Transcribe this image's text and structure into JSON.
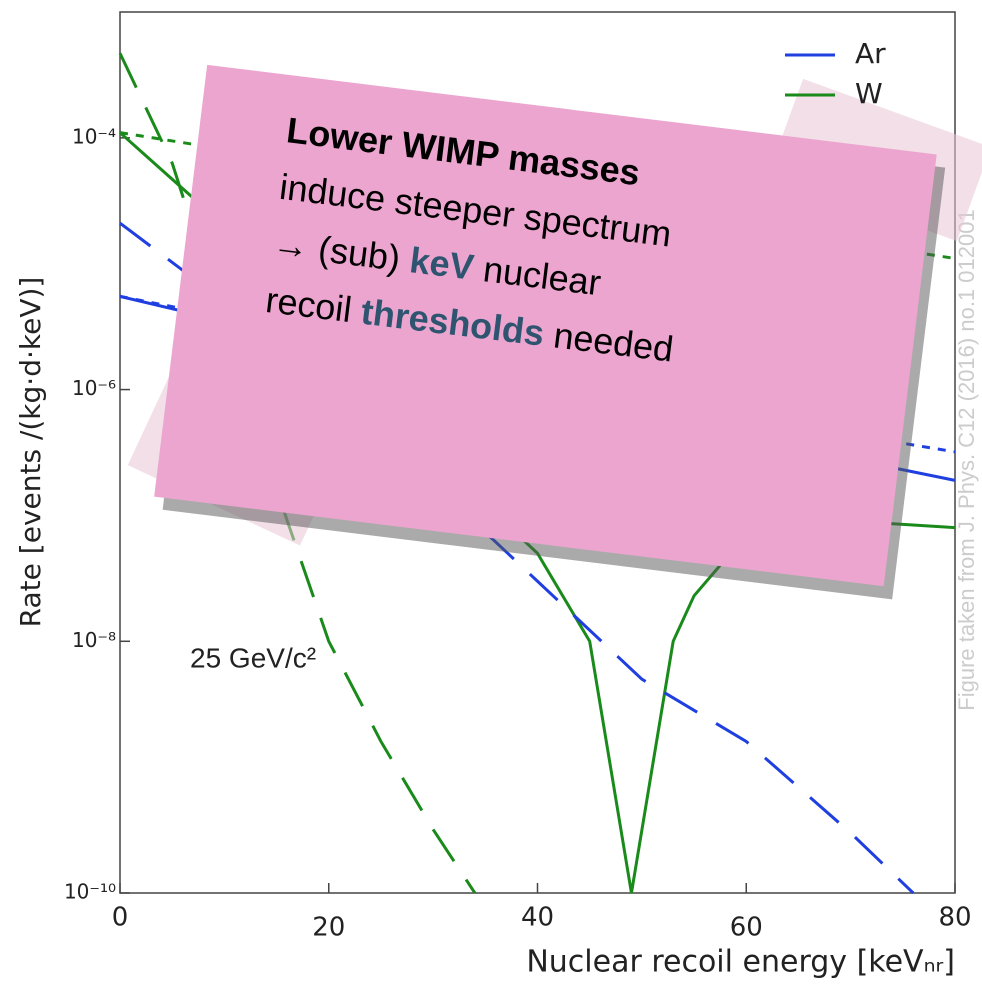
{
  "chart_data": {
    "type": "line",
    "y_label": "Rate [events /(kg·d·keV)]",
    "x_label": "Nuclear recoil energy [keVₙᵣ]",
    "log_y": true,
    "xlim": [
      0,
      80
    ],
    "ylim": [
      1e-10,
      0.001
    ],
    "xticks": [
      0,
      20,
      40,
      60,
      80
    ],
    "yticks": [
      {
        "value": 1e-10,
        "label": "10⁻¹⁰"
      },
      {
        "value": 1e-08,
        "label": "10⁻⁸"
      },
      {
        "value": 1e-06,
        "label": "10⁻⁶"
      },
      {
        "value": 0.0001,
        "label": "10⁻⁴"
      }
    ],
    "legend": "top-right",
    "series": [
      {
        "name": "Ar",
        "color": "#1f3fe0",
        "style": "solid",
        "x": [
          0,
          10,
          20,
          30,
          40,
          50,
          60,
          70,
          80
        ],
        "values": [
          5.5e-06,
          3.5e-06,
          2.2e-06,
          1.4e-06,
          9e-07,
          6e-07,
          4e-07,
          2.8e-07,
          1.9e-07
        ]
      },
      {
        "name": "W",
        "color": "#1a8a1a",
        "style": "solid",
        "x": [
          0,
          10,
          20,
          30,
          40,
          45,
          47,
          49,
          51,
          53,
          55,
          60,
          70,
          80
        ],
        "values": [
          0.00011,
          2e-05,
          2e-06,
          3e-07,
          5e-08,
          1e-08,
          1e-09,
          1e-10,
          1e-09,
          1e-08,
          2.3e-08,
          7e-08,
          9e-08,
          8e-08
        ]
      },
      {
        "color": "#1f3fe0",
        "style": "dashed",
        "x": [
          0,
          10,
          20,
          30,
          40,
          50,
          60,
          70,
          76
        ],
        "values": [
          2.1e-05,
          5e-06,
          1e-06,
          1.8e-07,
          3e-08,
          5e-09,
          1.6e-09,
          3e-10,
          1e-10
        ]
      },
      {
        "color": "#1a8a1a",
        "style": "dashed",
        "x": [
          0,
          5,
          10,
          15,
          20,
          25,
          30,
          34
        ],
        "values": [
          0.00047,
          6.3e-05,
          3.2e-06,
          1.6e-07,
          1e-08,
          1.6e-09,
          3.2e-10,
          1e-10
        ]
      },
      {
        "color": "#1f3fe0",
        "style": "dotted",
        "x": [
          0,
          20,
          40,
          60,
          80
        ],
        "values": [
          5.5e-06,
          2.6e-06,
          1.2e-06,
          6e-07,
          3.2e-07
        ]
      },
      {
        "color": "#1a8a1a",
        "style": "dotted",
        "x": [
          0,
          20,
          40,
          60,
          80
        ],
        "values": [
          0.00011,
          6e-05,
          3.5e-05,
          2e-05,
          1.1e-05
        ]
      }
    ],
    "annotation": "25 GeV/c²",
    "source_note": "Figure taken from J. Phys. C12 (2016) no.1 012001"
  },
  "note": {
    "lines": [
      [
        {
          "text": "Lower WIMP masses",
          "bold": true,
          "color": "#000000"
        }
      ],
      [
        {
          "text": "induce steeper spectrum",
          "bold": false,
          "color": "#000000"
        }
      ],
      [
        {
          "text": "→ (sub) ",
          "bold": false,
          "color": "#000000"
        },
        {
          "text": "keV",
          "bold": true,
          "color": "#2e5470"
        },
        {
          "text": " nuclear",
          "bold": false,
          "color": "#000000"
        }
      ],
      [
        {
          "text": "recoil ",
          "bold": false,
          "color": "#000000"
        },
        {
          "text": "thresholds",
          "bold": true,
          "color": "#2e5470"
        },
        {
          "text": " needed",
          "bold": false,
          "color": "#000000"
        }
      ]
    ]
  }
}
